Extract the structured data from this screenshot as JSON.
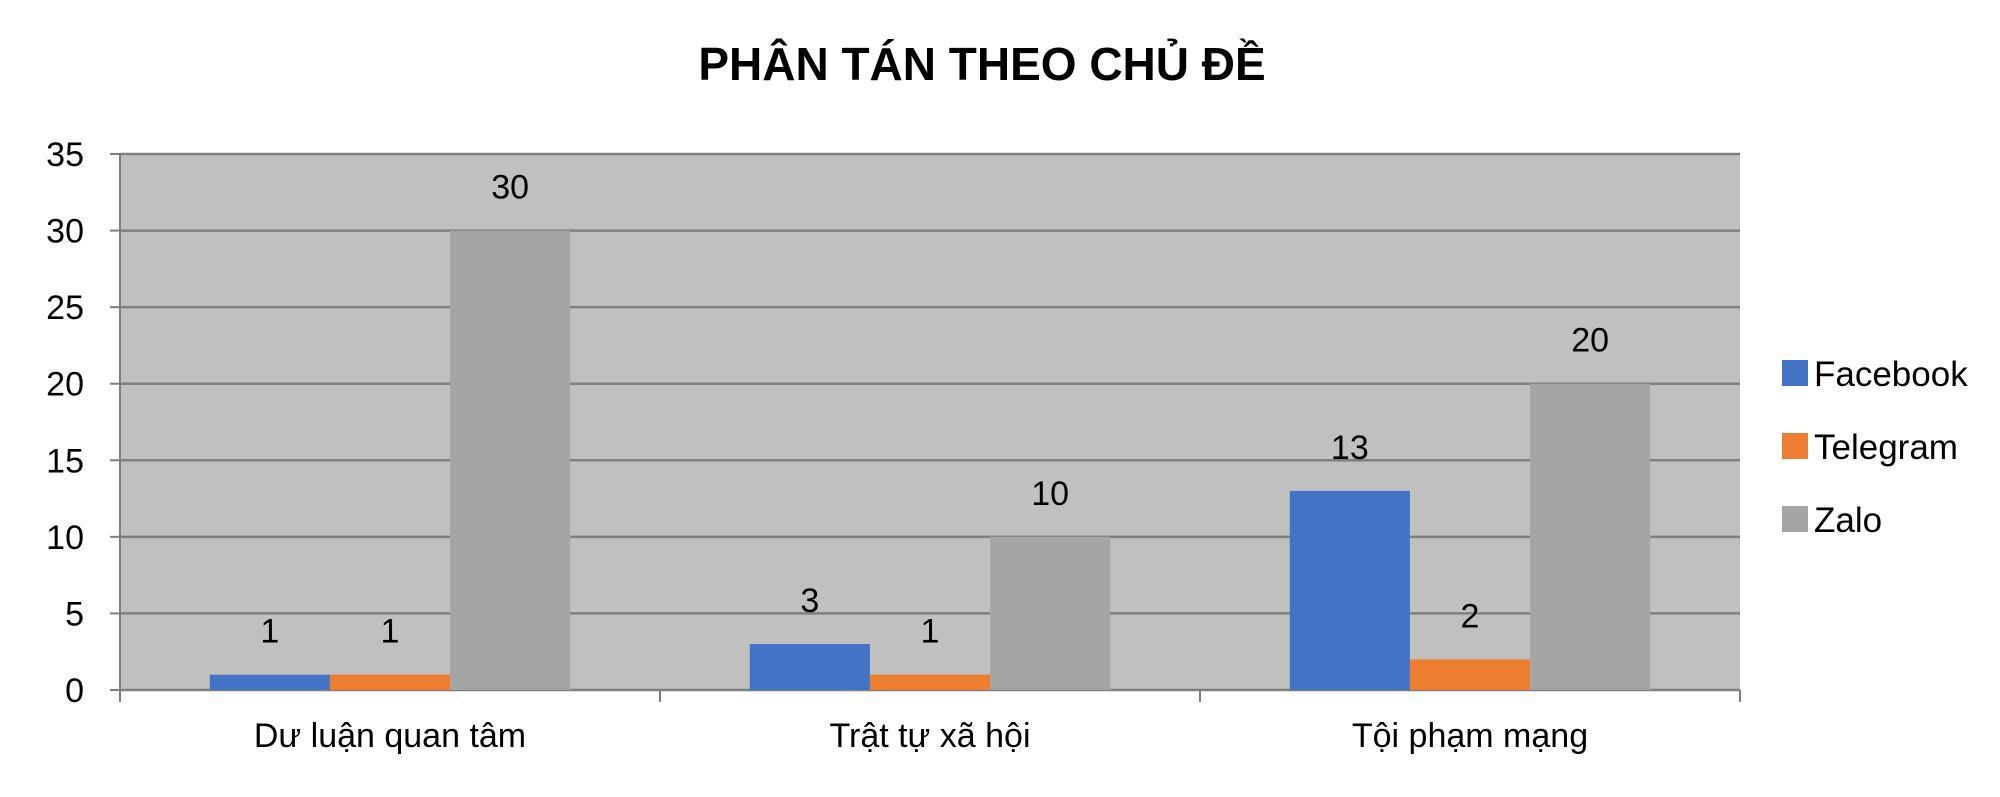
{
  "chart_data": {
    "type": "bar",
    "title": "PHÂN TÁN THEO CHỦ ĐỀ",
    "xlabel": "",
    "ylabel": "",
    "categories": [
      "Dư luận quan tâm",
      "Trật tự xã hội",
      "Tội phạm mạng"
    ],
    "series": [
      {
        "name": "Facebook",
        "values": [
          1,
          3,
          13
        ],
        "color": "#4472C4"
      },
      {
        "name": "Telegram",
        "values": [
          1,
          1,
          2
        ],
        "color": "#ED7D31"
      },
      {
        "name": "Zalo",
        "values": [
          30,
          10,
          20
        ],
        "color": "#A5A5A5"
      }
    ],
    "ylim": [
      0,
      35
    ],
    "yticks": [
      0,
      5,
      10,
      15,
      20,
      25,
      30,
      35
    ],
    "grid": true,
    "legend": "right",
    "plot_background": "#C0C0C0"
  }
}
